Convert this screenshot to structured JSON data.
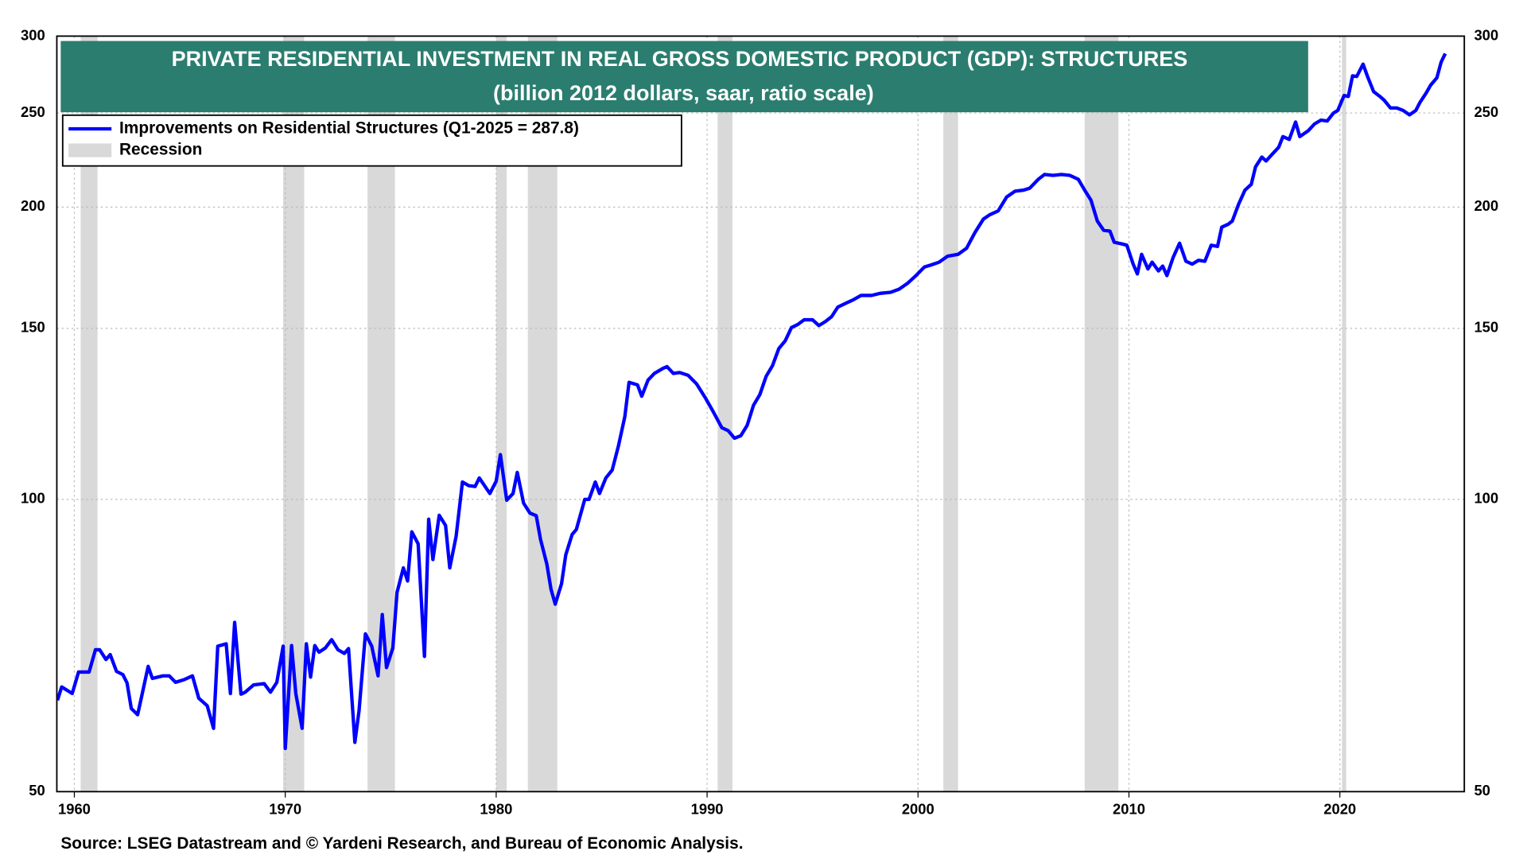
{
  "chart_data": {
    "type": "line",
    "title": "PRIVATE RESIDENTIAL INVESTMENT IN REAL GROSS DOMESTIC PRODUCT (GDP): STRUCTURES",
    "subtitle": "(billion 2012 dollars, saar, ratio scale)",
    "source": "Source: LSEG Datastream and © Yardeni Research, and Bureau of Economic Analysis.",
    "log_scale": true,
    "grid": true,
    "legend": "upper left",
    "xlim": [
      1959.17,
      2025.9
    ],
    "xticks": [
      1960,
      1970,
      1980,
      1990,
      2000,
      2010,
      2020
    ],
    "ylim": [
      50,
      300
    ],
    "yticks": [
      50,
      100,
      150,
      200,
      250,
      300
    ],
    "recessions": {
      "name": "Recession",
      "color": "#d9d9d9",
      "periods": [
        [
          1960.3,
          1961.1
        ],
        [
          1969.9,
          1970.9
        ],
        [
          1973.9,
          1975.2
        ],
        [
          1980.0,
          1980.5
        ],
        [
          1981.5,
          1982.9
        ],
        [
          1990.5,
          1991.2
        ],
        [
          2001.2,
          2001.9
        ],
        [
          2007.9,
          2009.5
        ],
        [
          2020.1,
          2020.3
        ]
      ]
    },
    "x": [
      1959.2,
      1959.4,
      1959.9,
      1960.2,
      1960.7,
      1961.0,
      1961.2,
      1961.5,
      1961.7,
      1962.0,
      1962.3,
      1962.5,
      1962.7,
      1963.0,
      1963.2,
      1963.5,
      1963.7,
      1964.2,
      1964.5,
      1964.8,
      1965.2,
      1965.6,
      1965.9,
      1966.3,
      1966.6,
      1966.8,
      1967.2,
      1967.4,
      1967.6,
      1967.9,
      1968.1,
      1968.5,
      1969.0,
      1969.3,
      1969.6,
      1969.9,
      1970.0,
      1970.3,
      1970.5,
      1970.8,
      1971.0,
      1971.2,
      1971.4,
      1971.6,
      1971.9,
      1972.2,
      1972.5,
      1972.8,
      1973.0,
      1973.3,
      1973.5,
      1973.8,
      1974.1,
      1974.4,
      1974.6,
      1974.8,
      1975.1,
      1975.3,
      1975.6,
      1975.8,
      1976.0,
      1976.3,
      1976.6,
      1976.8,
      1977.0,
      1977.3,
      1977.6,
      1977.8,
      1978.1,
      1978.4,
      1978.7,
      1979.0,
      1979.2,
      1979.7,
      1980.0,
      1980.2,
      1980.5,
      1980.8,
      1981.0,
      1981.3,
      1981.6,
      1981.9,
      1982.1,
      1982.4,
      1982.6,
      1982.8,
      1983.1,
      1983.3,
      1983.6,
      1983.8,
      1984.2,
      1984.4,
      1984.7,
      1984.9,
      1985.2,
      1985.5,
      1985.8,
      1986.1,
      1986.3,
      1986.7,
      1986.9,
      1987.2,
      1987.5,
      1987.9,
      1988.1,
      1988.4,
      1988.7,
      1989.1,
      1989.5,
      1989.9,
      1990.3,
      1990.7,
      1991.0,
      1991.3,
      1991.6,
      1991.9,
      1992.2,
      1992.5,
      1992.8,
      1993.1,
      1993.4,
      1993.7,
      1994.0,
      1994.3,
      1994.6,
      1995.0,
      1995.3,
      1995.6,
      1995.9,
      1996.2,
      1996.6,
      1996.9,
      1997.3,
      1997.8,
      1998.2,
      1998.7,
      1999.1,
      1999.5,
      1999.9,
      2000.3,
      2000.6,
      2001.0,
      2001.4,
      2001.9,
      2002.3,
      2002.7,
      2003.1,
      2003.4,
      2003.8,
      2004.2,
      2004.6,
      2005.0,
      2005.3,
      2005.7,
      2006.0,
      2006.4,
      2006.8,
      2007.2,
      2007.6,
      2007.9,
      2008.2,
      2008.5,
      2008.8,
      2009.1,
      2009.3,
      2009.7,
      2009.9,
      2010.2,
      2010.4,
      2010.6,
      2010.9,
      2011.1,
      2011.4,
      2011.6,
      2011.8,
      2012.1,
      2012.4,
      2012.7,
      2013.0,
      2013.3,
      2013.6,
      2013.9,
      2014.2,
      2014.4,
      2014.7,
      2014.9,
      2015.2,
      2015.5,
      2015.8,
      2016.0,
      2016.3,
      2016.5,
      2016.8,
      2017.1,
      2017.3,
      2017.6,
      2017.9,
      2018.1,
      2018.5,
      2018.8,
      2019.1,
      2019.4,
      2019.7,
      2019.9,
      2020.2,
      2020.4,
      2020.6,
      2020.8,
      2021.1,
      2021.3,
      2021.6,
      2021.9,
      2022.1,
      2022.4,
      2022.7,
      2023.0,
      2023.3,
      2023.6,
      2023.8,
      2024.1,
      2024.3,
      2024.6,
      2024.8,
      2024.9,
      2025.0
    ],
    "series": [
      {
        "name": "Improvements on Residential Structures (Q1-2025 = 287.8)",
        "color": "#0000ff",
        "values": [
          62.1,
          64.1,
          63.1,
          66.4,
          66.4,
          70,
          70,
          68.4,
          69.2,
          66.5,
          66,
          64.7,
          60.9,
          60,
          62.8,
          67.3,
          65.4,
          65.8,
          65.8,
          64.8,
          65.2,
          65.8,
          62.4,
          61.3,
          58.1,
          70.6,
          71,
          63.1,
          74.7,
          63,
          63.3,
          64.4,
          64.6,
          63.3,
          64.8,
          70.6,
          55.4,
          70.7,
          63.1,
          58.1,
          71,
          65.6,
          70.7,
          69.6,
          70.3,
          71.7,
          70,
          69.4,
          70.2,
          56.2,
          60.6,
          72.7,
          70.6,
          65.8,
          76.1,
          67.1,
          70.3,
          80.2,
          85,
          82.4,
          92.6,
          90,
          68.9,
          95.4,
          86.7,
          96.3,
          94,
          85,
          91.6,
          104.2,
          103.3,
          103.1,
          105.2,
          101.4,
          104.4,
          111.2,
          99.8,
          101.4,
          106.6,
          99.1,
          96.8,
          96.2,
          91,
          85.8,
          80.8,
          78,
          81.9,
          87.7,
          92,
          93.1,
          100,
          100,
          104.2,
          101.4,
          105.2,
          107.2,
          113.6,
          121.7,
          132,
          131.2,
          127.7,
          132.7,
          134.8,
          136.4,
          137,
          134.8,
          135.1,
          134.2,
          131.5,
          127.4,
          123,
          118.5,
          117.7,
          115.6,
          116.3,
          119.2,
          125,
          128.2,
          133.9,
          137.3,
          143,
          145.6,
          150.3,
          151.4,
          153.1,
          153.1,
          151,
          152.4,
          154.2,
          157.8,
          159.3,
          160.4,
          162.2,
          162.2,
          163,
          163.4,
          164.6,
          166.9,
          170,
          173.5,
          174.3,
          175.5,
          178,
          178.8,
          181.4,
          188.3,
          194.4,
          196.4,
          198.2,
          204.8,
          207.7,
          208.2,
          209.2,
          213.6,
          216.1,
          215.6,
          216.1,
          215.6,
          213.6,
          208.2,
          203.3,
          193.5,
          189.3,
          188.9,
          184,
          183.2,
          182.7,
          174.7,
          170.7,
          178.8,
          172.7,
          175.5,
          171.9,
          173.9,
          170,
          177.6,
          183.6,
          175.9,
          174.7,
          176.3,
          175.9,
          182.7,
          182.2,
          190.7,
          192,
          193.5,
          201.4,
          208.2,
          211.1,
          220,
          225.2,
          223.1,
          226.8,
          230.5,
          236.4,
          234.8,
          244.7,
          236.4,
          239.7,
          243.6,
          245.8,
          245.3,
          250,
          251.5,
          260.6,
          260,
          273,
          272.6,
          280.7,
          273,
          263,
          260,
          257.7,
          253,
          253,
          251.5,
          248.9,
          251.5,
          256.4,
          262.3,
          267,
          271.8,
          282,
          285,
          287.8
        ]
      }
    ]
  }
}
